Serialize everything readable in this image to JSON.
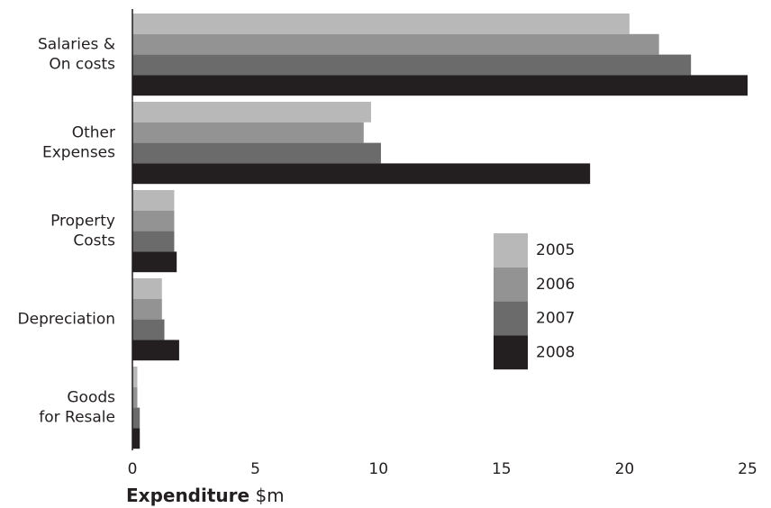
{
  "chart_data": {
    "type": "bar",
    "orientation": "horizontal",
    "categories": [
      [
        "Salaries &",
        "On costs"
      ],
      [
        "Other",
        "Expenses"
      ],
      [
        "Property",
        "Costs"
      ],
      [
        "Depreciation"
      ],
      [
        "Goods",
        "for Resale"
      ]
    ],
    "series": [
      {
        "name": "2005",
        "color": "#b8b8b9",
        "values": [
          20.2,
          9.7,
          1.7,
          1.2,
          0.2
        ]
      },
      {
        "name": "2006",
        "color": "#939394",
        "values": [
          21.4,
          9.4,
          1.7,
          1.2,
          0.2
        ]
      },
      {
        "name": "2007",
        "color": "#6b6b6c",
        "values": [
          22.7,
          10.1,
          1.7,
          1.3,
          0.3
        ]
      },
      {
        "name": "2008",
        "color": "#231f20",
        "values": [
          25.0,
          18.6,
          1.8,
          1.9,
          0.3
        ]
      }
    ],
    "xlim": [
      0,
      25
    ],
    "xticks": [
      0,
      5,
      10,
      15,
      20,
      25
    ],
    "xlabel": [
      "Expenditure",
      "$m"
    ],
    "legend": "center-right"
  }
}
